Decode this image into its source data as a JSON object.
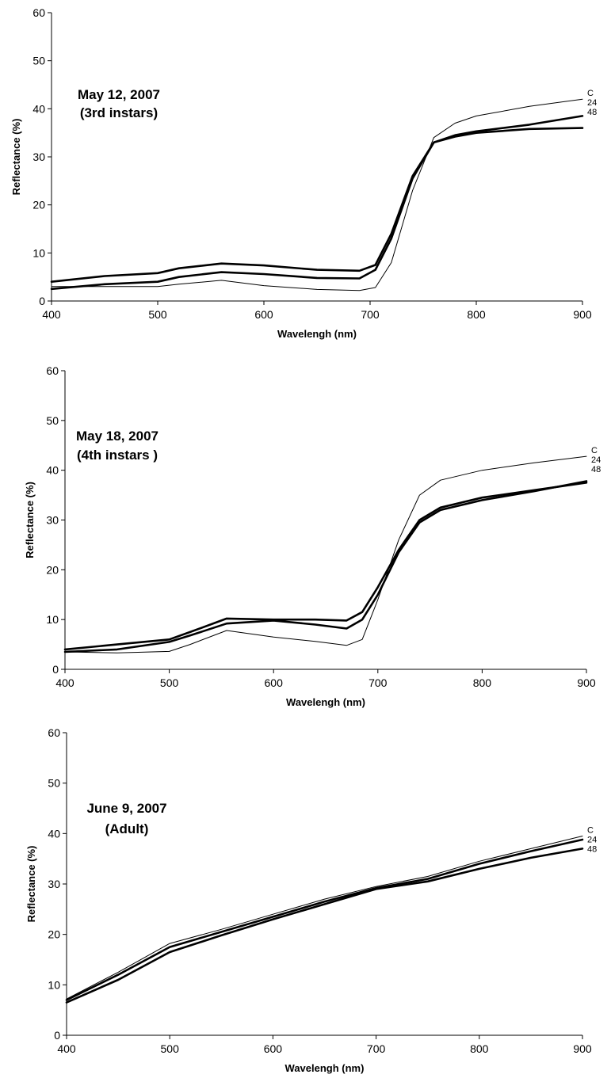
{
  "chart_data": [
    {
      "type": "line",
      "annotation": [
        "May 12, 2007",
        "(3rd instars)"
      ],
      "xlabel": "Wavelengh (nm)",
      "ylabel": "Reflectance (%)",
      "xlim": [
        400,
        900
      ],
      "ylim": [
        0,
        60
      ],
      "xticks": [
        400,
        500,
        600,
        700,
        800,
        900
      ],
      "yticks": [
        0,
        10,
        20,
        30,
        40,
        50,
        60
      ],
      "grid": false,
      "x": [
        400,
        450,
        500,
        520,
        560,
        600,
        650,
        690,
        705,
        720,
        740,
        760,
        780,
        800,
        850,
        900
      ],
      "series": [
        {
          "name": "C",
          "values": [
            3.0,
            3.0,
            3.0,
            3.5,
            4.3,
            3.2,
            2.4,
            2.2,
            2.8,
            8.0,
            23.0,
            34.0,
            37.0,
            38.5,
            40.5,
            42.0
          ]
        },
        {
          "name": "24",
          "values": [
            4.0,
            5.2,
            5.8,
            6.8,
            7.8,
            7.4,
            6.5,
            6.3,
            7.5,
            14.0,
            26.0,
            33.0,
            34.5,
            35.3,
            36.7,
            38.5
          ]
        },
        {
          "name": "48",
          "values": [
            2.5,
            3.5,
            4.0,
            5.0,
            6.0,
            5.6,
            4.8,
            4.7,
            6.5,
            13.0,
            25.5,
            33.0,
            34.2,
            35.0,
            35.8,
            36.0
          ]
        }
      ]
    },
    {
      "type": "line",
      "annotation": [
        "May 18, 2007",
        "(4th instars )"
      ],
      "xlabel": "Wavelengh (nm)",
      "ylabel": "Reflectance (%)",
      "xlim": [
        400,
        900
      ],
      "ylim": [
        0,
        60
      ],
      "xticks": [
        400,
        500,
        600,
        700,
        800,
        900
      ],
      "yticks": [
        0,
        10,
        20,
        30,
        40,
        50,
        60
      ],
      "grid": false,
      "x": [
        400,
        450,
        500,
        520,
        555,
        600,
        640,
        670,
        685,
        700,
        720,
        740,
        760,
        800,
        850,
        900
      ],
      "series": [
        {
          "name": "C",
          "values": [
            3.5,
            3.3,
            3.6,
            5.0,
            7.8,
            6.5,
            5.6,
            4.8,
            6.0,
            14.0,
            26.0,
            35.0,
            38.0,
            40.0,
            41.5,
            42.8
          ]
        },
        {
          "name": "24",
          "values": [
            4.0,
            5.0,
            6.0,
            7.5,
            10.2,
            10.0,
            10.0,
            9.8,
            11.5,
            16.5,
            24.0,
            30.0,
            32.5,
            34.5,
            36.0,
            37.5
          ]
        },
        {
          "name": "48",
          "values": [
            3.5,
            4.0,
            5.5,
            6.8,
            9.2,
            9.8,
            9.0,
            8.2,
            10.0,
            15.0,
            23.5,
            29.5,
            32.0,
            34.0,
            35.8,
            37.8
          ]
        }
      ]
    },
    {
      "type": "line",
      "annotation": [
        "June 9, 2007",
        "(Adult)"
      ],
      "xlabel": "Wavelengh (nm)",
      "ylabel": "Reflectance (%)",
      "xlim": [
        400,
        900
      ],
      "ylim": [
        0,
        60
      ],
      "xticks": [
        400,
        500,
        600,
        700,
        800,
        900
      ],
      "yticks": [
        0,
        10,
        20,
        30,
        40,
        50,
        60
      ],
      "grid": false,
      "x": [
        400,
        450,
        500,
        550,
        600,
        650,
        700,
        750,
        800,
        850,
        900
      ],
      "series": [
        {
          "name": "C",
          "values": [
            7.2,
            12.5,
            18.2,
            21.0,
            24.0,
            27.0,
            29.5,
            31.5,
            34.5,
            37.0,
            39.5
          ]
        },
        {
          "name": "24",
          "values": [
            7.0,
            12.0,
            17.5,
            20.5,
            23.5,
            26.5,
            29.2,
            31.0,
            34.0,
            36.5,
            38.8
          ]
        },
        {
          "name": "48",
          "values": [
            6.5,
            11.0,
            16.5,
            19.8,
            23.0,
            26.0,
            29.0,
            30.5,
            33.0,
            35.2,
            37.0
          ]
        }
      ]
    }
  ]
}
